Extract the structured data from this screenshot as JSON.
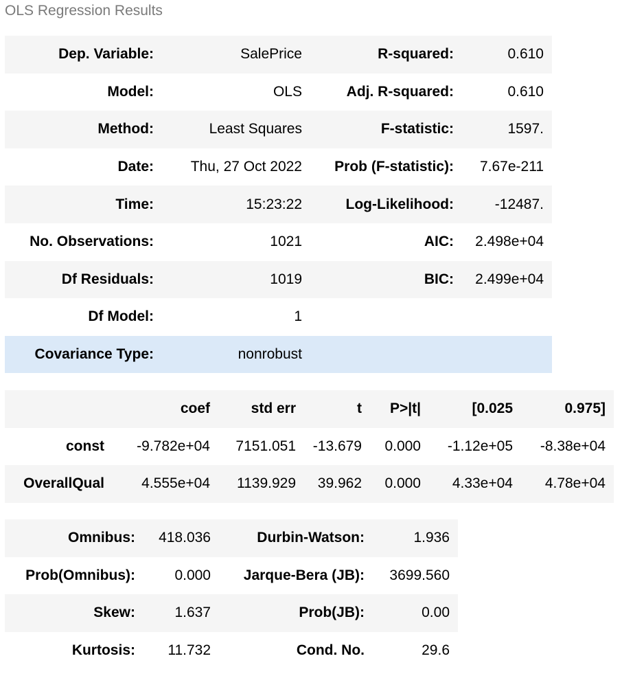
{
  "caption": "OLS Regression Results",
  "colors": {
    "caption_text": "#7a7a7a",
    "row_shade": "#f5f5f5",
    "row_highlight": "#dbe9f8"
  },
  "summary": [
    {
      "label_left": "Dep. Variable:",
      "value_left": "SalePrice",
      "label_right": "R-squared:",
      "value_right": "0.610"
    },
    {
      "label_left": "Model:",
      "value_left": "OLS",
      "label_right": "Adj. R-squared:",
      "value_right": "0.610"
    },
    {
      "label_left": "Method:",
      "value_left": "Least Squares",
      "label_right": "F-statistic:",
      "value_right": "1597."
    },
    {
      "label_left": "Date:",
      "value_left": "Thu, 27 Oct 2022",
      "label_right": "Prob (F-statistic):",
      "value_right": "7.67e-211"
    },
    {
      "label_left": "Time:",
      "value_left": "15:23:22",
      "label_right": "Log-Likelihood:",
      "value_right": "-12487."
    },
    {
      "label_left": "No. Observations:",
      "value_left": "1021",
      "label_right": "AIC:",
      "value_right": "2.498e+04"
    },
    {
      "label_left": "Df Residuals:",
      "value_left": "1019",
      "label_right": "BIC:",
      "value_right": "2.499e+04"
    },
    {
      "label_left": "Df Model:",
      "value_left": "1",
      "label_right": "",
      "value_right": ""
    },
    {
      "label_left": "Covariance Type:",
      "value_left": "nonrobust",
      "label_right": "",
      "value_right": ""
    }
  ],
  "coefficients": {
    "headers": [
      "",
      "coef",
      "std err",
      "t",
      "P>|t|",
      "[0.025",
      "0.975]"
    ],
    "rows": [
      {
        "name": "const",
        "coef": "-9.782e+04",
        "std_err": "7151.051",
        "t": "-13.679",
        "p": "0.000",
        "ci_low": "-1.12e+05",
        "ci_high": "-8.38e+04"
      },
      {
        "name": "OverallQual",
        "coef": "4.555e+04",
        "std_err": "1139.929",
        "t": "39.962",
        "p": "0.000",
        "ci_low": "4.33e+04",
        "ci_high": "4.78e+04"
      }
    ]
  },
  "diagnostics": [
    {
      "label_left": "Omnibus:",
      "value_left": "418.036",
      "label_right": "Durbin-Watson:",
      "value_right": "1.936"
    },
    {
      "label_left": "Prob(Omnibus):",
      "value_left": "0.000",
      "label_right": "Jarque-Bera (JB):",
      "value_right": "3699.560"
    },
    {
      "label_left": "Skew:",
      "value_left": "1.637",
      "label_right": "Prob(JB):",
      "value_right": "0.00"
    },
    {
      "label_left": "Kurtosis:",
      "value_left": "11.732",
      "label_right": "Cond. No.",
      "value_right": "29.6"
    }
  ]
}
